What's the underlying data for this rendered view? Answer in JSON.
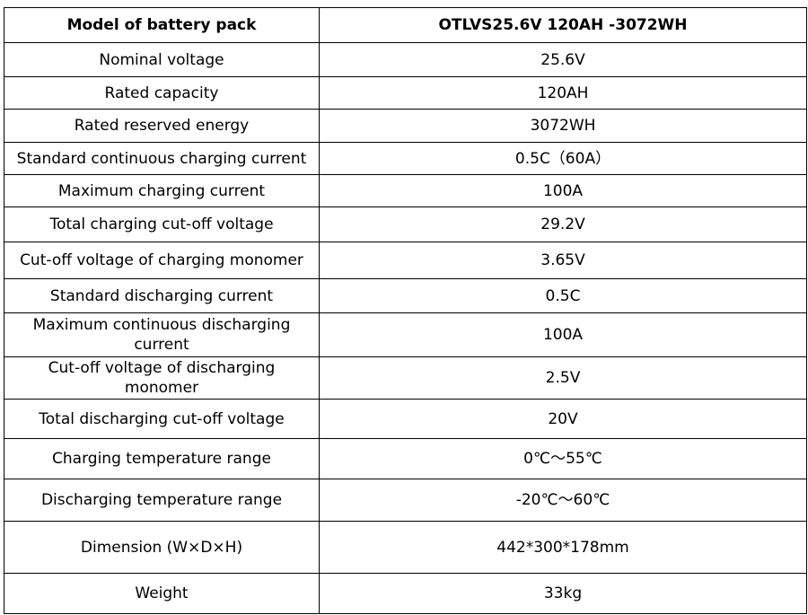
{
  "table": {
    "header": [
      "Model of battery pack",
      "OTLVS25.6V 120AH -3072WH"
    ],
    "rows": [
      [
        "Nominal voltage",
        "25.6V"
      ],
      [
        "Rated capacity",
        "120AH"
      ],
      [
        "Rated reserved energy",
        "3072WH"
      ],
      [
        "Standard continuous charging current",
        "0.5C（60A）"
      ],
      [
        "Maximum charging current",
        "100A"
      ],
      [
        "Total charging cut-off voltage",
        "29.2V"
      ],
      [
        "Cut-off voltage of charging monomer",
        "3.65V"
      ],
      [
        "Standard discharging current",
        "0.5C"
      ],
      [
        "Maximum continuous discharging current",
        "100A"
      ],
      [
        "Cut-off voltage of discharging monomer",
        "2.5V"
      ],
      [
        "Total discharging cut-off voltage",
        "20V"
      ],
      [
        "Charging temperature range",
        "0℃～55℃"
      ],
      [
        "Discharging temperature range",
        "-20℃～60℃"
      ],
      [
        "Dimension (W×D×H)",
        "442*300*178mm"
      ],
      [
        "Weight",
        "33kg"
      ]
    ]
  }
}
